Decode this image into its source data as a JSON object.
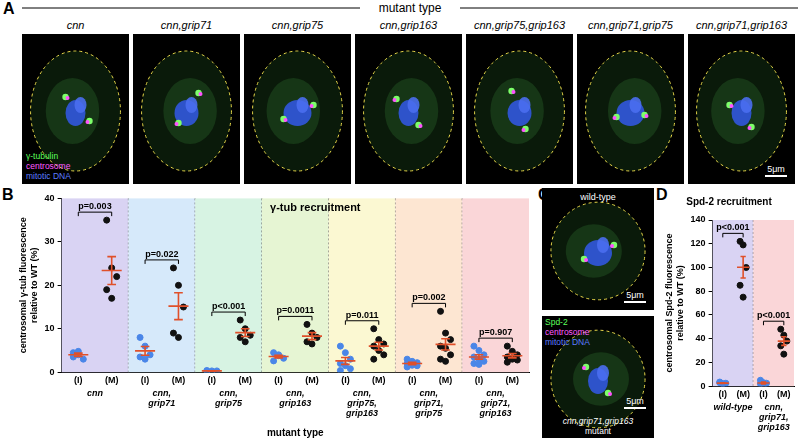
{
  "panel_labels": [
    "A",
    "B",
    "C",
    "D"
  ],
  "panel_a": {
    "header": "mutant type",
    "images": [
      "cnn",
      "cnn,grip71",
      "cnn,grip75",
      "cnn,grip163",
      "cnn,grip75,grip163",
      "cnn,grip71,grip75",
      "cnn,grip71,grip163"
    ],
    "legend": [
      {
        "text": "γ-tubulin",
        "color": "#5cff5c"
      },
      {
        "text": "centrosome",
        "color": "#ff5cff"
      },
      {
        "text": "mitotic DNA",
        "color": "#5c7cff"
      }
    ],
    "scale_bar": "5μm"
  },
  "panel_c": {
    "images": [
      {
        "label": "wild-type"
      },
      {
        "label": "cnn,grip71,grip163",
        "sublabel": "mutant"
      }
    ],
    "legend": [
      {
        "text": "Spd-2",
        "color": "#5cff5c"
      },
      {
        "text": "centrosome",
        "color": "#ff5cff"
      },
      {
        "text": "mitotic DNA",
        "color": "#5c7cff"
      }
    ],
    "scale_bar": "5μm"
  },
  "chart_data": [
    {
      "type": "scatter",
      "title": "γ-tub recruitment",
      "x_label": "mutant type",
      "y_label": "centrosomal γ-tub fluorescence relative to WT (%)",
      "categories": [
        "(I)",
        "(M)",
        "(I)",
        "(M)",
        "(I)",
        "(M)",
        "(I)",
        "(M)",
        "(I)",
        "(M)",
        "(I)",
        "(M)",
        "(I)",
        "(M)"
      ],
      "groups": [
        {
          "label": "cnn",
          "color": "#d9d3f3",
          "annotation": "p=0.003"
        },
        {
          "label": "cnn,grip71",
          "color": "#d6e9fa",
          "annotation": "p=0.022"
        },
        {
          "label": "cnn,grip75",
          "color": "#d7f3e3",
          "annotation": "p<0.001"
        },
        {
          "label": "cnn,grip163",
          "color": "#e6f5d3",
          "annotation": "p=0.0011"
        },
        {
          "label": "cnn,grip75,grip163",
          "color": "#fbf8d2",
          "annotation": "p=0.011"
        },
        {
          "label": "cnn,grip71,grip75",
          "color": "#fde6d2",
          "annotation": "p=0.002"
        },
        {
          "label": "cnn,grip71,grip163",
          "color": "#fad6d8",
          "annotation": "p=0.907"
        }
      ],
      "values": [
        [
          4.5,
          4,
          3,
          3.5,
          4.8
        ],
        [
          35,
          24,
          22,
          19,
          17
        ],
        [
          8,
          6,
          4,
          3.5,
          3
        ],
        [
          24,
          20,
          15,
          9,
          8
        ],
        [
          0.4,
          0.3,
          0.3,
          0.2
        ],
        [
          12,
          10,
          8.5,
          8,
          7
        ],
        [
          4.5,
          3.8,
          3.2,
          2.6,
          4
        ],
        [
          11,
          9,
          8,
          7,
          6.5
        ],
        [
          6,
          4.5,
          3,
          2,
          1.5,
          0.8,
          0.4
        ],
        [
          10,
          7.5,
          6.5,
          6,
          5,
          4,
          3
        ],
        [
          3,
          2.5,
          2.2,
          2,
          1.6,
          1.5,
          1.2
        ],
        [
          14,
          9,
          7.5,
          6,
          5.5,
          4,
          3,
          2.5
        ],
        [
          6,
          5,
          4,
          3.5,
          3,
          2.5,
          2,
          1.8
        ],
        [
          6,
          4.8,
          4,
          3.5,
          3,
          2.8,
          2.3
        ]
      ],
      "means": [
        4,
        23.4,
        4.9,
        15.2,
        0.3,
        9.1,
        3.6,
        8.3,
        2.6,
        6,
        2,
        6.4,
        3.5,
        3.8
      ],
      "errors": [
        0.4,
        3.2,
        1,
        3.1,
        0.05,
        0.9,
        0.3,
        0.8,
        0.8,
        0.9,
        0.25,
        1.3,
        0.5,
        0.5
      ],
      "colors": [
        "#4a86e8",
        "#111111",
        "#4a86e8",
        "#111111",
        "#4a86e8",
        "#111111",
        "#4a86e8",
        "#111111",
        "#4a86e8",
        "#111111",
        "#4a86e8",
        "#111111",
        "#4a86e8",
        "#111111"
      ],
      "ylim": [
        0,
        40
      ],
      "yticks": [
        0,
        10,
        20,
        30,
        40
      ],
      "grid": false
    },
    {
      "type": "scatter",
      "title": "Spd-2 recruitment",
      "y_label": "centrosomal Spd-2 fluorescence relative to WT (%)",
      "categories": [
        "(I)",
        "(M)",
        "(I)",
        "(M)"
      ],
      "groups": [
        {
          "label": "wild-type",
          "color": "#d9d3f3",
          "annotation": "p<0.001"
        },
        {
          "label": "cnn,grip71,grip163",
          "color": "#fad6d8",
          "annotation": "p<0.001"
        }
      ],
      "values": [
        [
          3,
          2,
          2.5,
          3.5,
          2
        ],
        [
          122,
          119,
          100,
          85,
          75
        ],
        [
          5,
          3,
          2.5,
          2,
          1
        ],
        [
          48,
          43,
          38,
          34,
          27
        ]
      ],
      "means": [
        2.6,
        100.2,
        2.7,
        38
      ],
      "errors": [
        0.3,
        9,
        0.7,
        3.6
      ],
      "colors": [
        "#4a86e8",
        "#111111",
        "#4a86e8",
        "#111111"
      ],
      "ylim": [
        0,
        140
      ],
      "yticks": [
        0,
        20,
        40,
        60,
        80,
        100,
        120,
        140
      ],
      "grid": false
    }
  ]
}
